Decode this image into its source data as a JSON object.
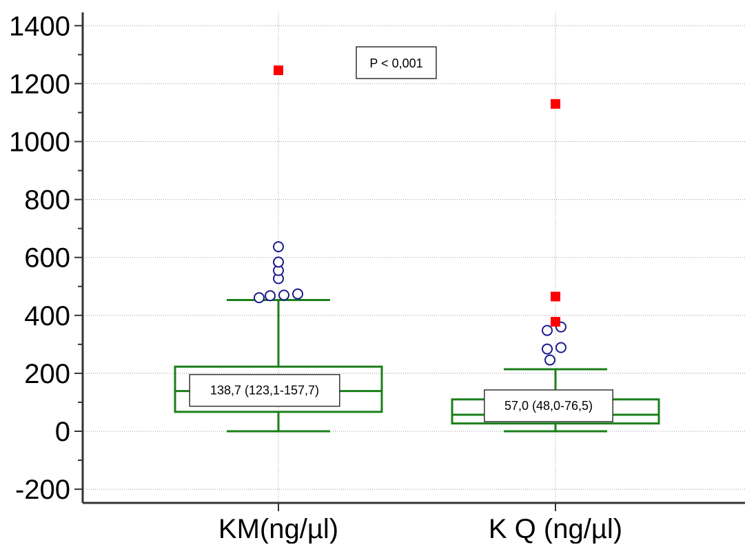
{
  "chart_data": {
    "type": "box",
    "title": "",
    "xlabel": "",
    "ylabel": "",
    "ylim": [
      -250,
      1450
    ],
    "yticks": [
      "-200",
      "0",
      "200",
      "400",
      "600",
      "800",
      "1000",
      "1200",
      "1400"
    ],
    "ytick_values": [
      -200,
      0,
      200,
      400,
      600,
      800,
      1000,
      1200,
      1400
    ],
    "grid": true,
    "annotation": "P < 0,001",
    "colors": {
      "box": "#1a7f1a",
      "outlier": "#1a1a8c",
      "extreme": "#ff0000",
      "grid": "#999999",
      "axis": "#333333"
    },
    "categories": [
      "KM(ng/µl)",
      "K Q (ng/µl)"
    ],
    "boxes": [
      {
        "category": "KM(ng/µl)",
        "whisker_low": 0,
        "q1": 67,
        "median": 138.7,
        "q3": 223,
        "whisker_high": 453,
        "label": "138,7 (123,1-157,7)",
        "outliers": [
          {
            "dx": -0.07,
            "y": 461
          },
          {
            "dx": -0.03,
            "y": 468
          },
          {
            "dx": 0.02,
            "y": 470
          },
          {
            "dx": 0.07,
            "y": 474
          },
          {
            "dx": 0.0,
            "y": 527
          },
          {
            "dx": 0.0,
            "y": 555
          },
          {
            "dx": 0.0,
            "y": 584
          },
          {
            "dx": 0.0,
            "y": 637
          }
        ],
        "extremes": [
          {
            "dx": 0.0,
            "y": 1246
          }
        ]
      },
      {
        "category": "K Q (ng/µl)",
        "whisker_low": 0,
        "q1": 27,
        "median": 57.0,
        "q3": 110,
        "whisker_high": 214,
        "label": "57,0 (48,0-76,5)",
        "outliers": [
          {
            "dx": -0.02,
            "y": 246
          },
          {
            "dx": -0.03,
            "y": 284
          },
          {
            "dx": 0.02,
            "y": 289
          },
          {
            "dx": -0.03,
            "y": 348
          },
          {
            "dx": 0.02,
            "y": 360
          }
        ],
        "extremes": [
          {
            "dx": 0.0,
            "y": 378
          },
          {
            "dx": 0.0,
            "y": 465
          },
          {
            "dx": 0.0,
            "y": 1130
          }
        ]
      }
    ]
  }
}
